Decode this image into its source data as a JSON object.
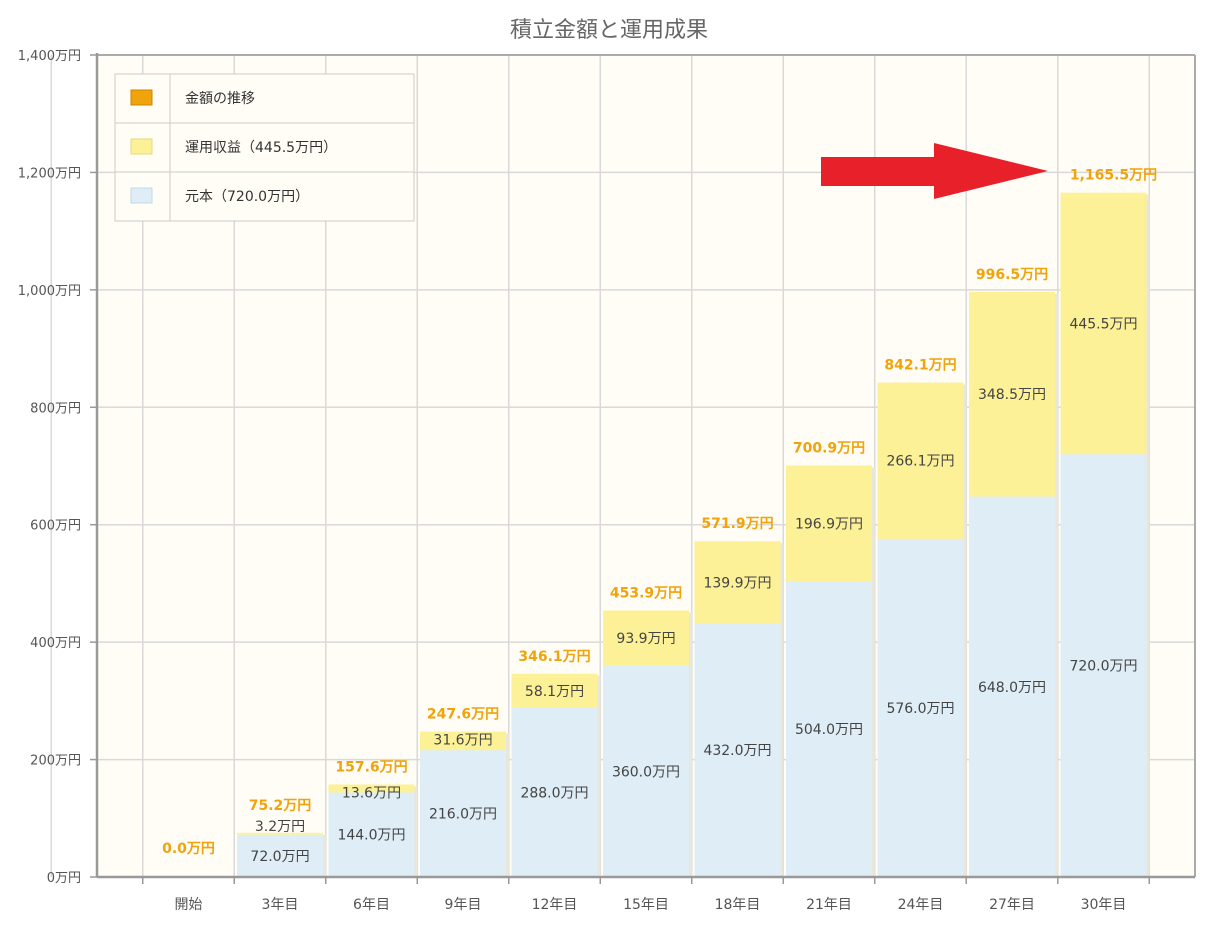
{
  "chart_data": {
    "type": "bar",
    "stacked": true,
    "title": "積立金額と運用成果",
    "xlabel": "",
    "ylabel": "",
    "ylim": [
      0,
      1400
    ],
    "yticks": [
      0,
      200,
      400,
      600,
      800,
      1000,
      1200,
      1400
    ],
    "ytick_labels": [
      "0万円",
      "200万円",
      "400万円",
      "600万円",
      "800万円",
      "1,000万円",
      "1,200万円",
      "1,400万円"
    ],
    "grid": true,
    "categories": [
      "開始",
      "3年目",
      "6年目",
      "9年目",
      "12年目",
      "15年目",
      "18年目",
      "21年目",
      "24年目",
      "27年目",
      "30年目"
    ],
    "series": [
      {
        "name": "元本（720.0万円）",
        "color": "#dfeef6",
        "values": [
          0,
          72.0,
          144.0,
          216.0,
          288.0,
          360.0,
          432.0,
          504.0,
          576.0,
          648.0,
          720.0
        ],
        "labels": [
          "",
          "72.0万円",
          "144.0万円",
          "216.0万円",
          "288.0万円",
          "360.0万円",
          "432.0万円",
          "504.0万円",
          "576.0万円",
          "648.0万円",
          "720.0万円"
        ]
      },
      {
        "name": "運用収益（445.5万円）",
        "color": "#fdf197",
        "values": [
          0,
          3.2,
          13.6,
          31.6,
          58.1,
          93.9,
          139.9,
          196.9,
          266.1,
          348.5,
          445.5
        ],
        "labels": [
          "",
          "3.2万円",
          "13.6万円",
          "31.6万円",
          "58.1万円",
          "93.9万円",
          "139.9万円",
          "196.9万円",
          "266.1万円",
          "348.5万円",
          "445.5万円"
        ]
      }
    ],
    "totals": {
      "name": "金額の推移",
      "color": "#f0a30a",
      "values": [
        0.0,
        75.2,
        157.6,
        247.6,
        346.1,
        453.9,
        571.9,
        700.9,
        842.1,
        996.5,
        1165.5
      ],
      "labels": [
        "0.0万円",
        "75.2万円",
        "157.6万円",
        "247.6万円",
        "346.1万円",
        "453.9万円",
        "571.9万円",
        "700.9万円",
        "842.1万円",
        "996.5万円",
        "1,165.5万円"
      ]
    },
    "legend": {
      "placement": "top-left",
      "entries": [
        {
          "label": "金額の推移",
          "color": "#f0a30a"
        },
        {
          "label": "運用収益（445.5万円）",
          "color": "#fdf197"
        },
        {
          "label": "元本（720.0万円）",
          "color": "#dfeef6"
        }
      ]
    },
    "annotation": {
      "type": "arrow",
      "color": "#e8202a",
      "points_to": "30年目"
    }
  },
  "colors": {
    "plot_background": "#fffdf6",
    "grid": "#d9d9d9",
    "axis": "#999999",
    "total_label": "#f0a30a"
  }
}
